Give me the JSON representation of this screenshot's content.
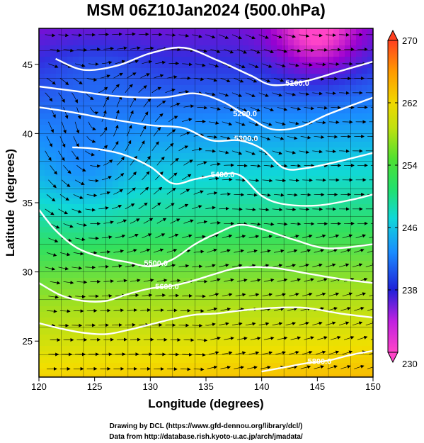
{
  "chart_data": {
    "type": "heatmap",
    "title": "MSM 06Z10Jan2024 (500.0hPa)",
    "xlabel": "Longitude (degrees)",
    "ylabel": "Latitude  (degrees)",
    "xlim": [
      120,
      150
    ],
    "ylim": [
      22.4,
      47.6
    ],
    "x_ticks": [
      120,
      125,
      130,
      135,
      140,
      145,
      150
    ],
    "y_ticks": [
      25,
      30,
      35,
      40,
      45
    ],
    "x_tick_labels": [
      "120",
      "125",
      "130",
      "135",
      "140",
      "145",
      "150"
    ],
    "y_tick_labels": [
      "25",
      "30",
      "35",
      "40",
      "45"
    ],
    "grid": true,
    "colorbar": {
      "min": 230,
      "max": 270,
      "ticks": [
        230,
        238,
        246,
        254,
        262,
        270
      ],
      "tick_labels": [
        "230",
        "238",
        "246",
        "254",
        "262",
        "270"
      ],
      "colors": [
        "#ff44c8",
        "#9a00d0",
        "#3030e0",
        "#1a8cff",
        "#10d8d8",
        "#30e060",
        "#a0e020",
        "#f0e000",
        "#ff9a00",
        "#ff4020"
      ]
    },
    "contours": [
      {
        "value": 5100.0,
        "label": "5100.0",
        "points": [
          [
            121.5,
            45.4
          ],
          [
            124,
            44.6
          ],
          [
            127,
            44.9
          ],
          [
            130,
            45.8
          ],
          [
            133,
            46.2
          ],
          [
            136,
            45.3
          ],
          [
            139,
            44.2
          ],
          [
            141,
            43.5
          ],
          [
            144,
            43.8
          ],
          [
            147,
            44.5
          ],
          [
            150,
            45.2
          ]
        ],
        "label_at": [
          143.2,
          43.6
        ]
      },
      {
        "value": 5200.0,
        "label": "5200.0",
        "points": [
          [
            120,
            43.4
          ],
          [
            123,
            43.1
          ],
          [
            127,
            42.7
          ],
          [
            131,
            42.6
          ],
          [
            134,
            42.9
          ],
          [
            136.5,
            42.3
          ],
          [
            139,
            41.1
          ],
          [
            141,
            40.3
          ],
          [
            143.5,
            40.5
          ],
          [
            146,
            41.4
          ],
          [
            150,
            42.6
          ]
        ],
        "label_at": [
          138.5,
          41.4
        ]
      },
      {
        "value": 5300.0,
        "label": "5300.0",
        "points": [
          [
            120,
            41.9
          ],
          [
            122.5,
            41.6
          ],
          [
            126,
            41.1
          ],
          [
            130,
            40.6
          ],
          [
            133,
            40.4
          ],
          [
            135.5,
            39.5
          ],
          [
            138,
            39.5
          ],
          [
            140,
            38.9
          ],
          [
            142,
            37.5
          ],
          [
            144,
            37.5
          ],
          [
            147,
            38.0
          ],
          [
            150,
            38.6
          ]
        ],
        "label_at": [
          138.6,
          39.6
        ]
      },
      {
        "value": 5400.0,
        "label": "5400.0",
        "points": [
          [
            123,
            39.0
          ],
          [
            125,
            38.9
          ],
          [
            127.5,
            38.5
          ],
          [
            130,
            37.6
          ],
          [
            132,
            36.4
          ],
          [
            134,
            36.7
          ],
          [
            136,
            37.0
          ],
          [
            138,
            37.0
          ],
          [
            140,
            35.5
          ],
          [
            142,
            34.9
          ],
          [
            145,
            34.8
          ],
          [
            148,
            35.2
          ],
          [
            150,
            35.6
          ]
        ],
        "label_at": [
          136.5,
          37.0
        ]
      },
      {
        "value": 5500.0,
        "label": "5500.0",
        "points": [
          [
            120,
            34.5
          ],
          [
            121.5,
            33.0
          ],
          [
            123.5,
            31.7
          ],
          [
            126,
            31.0
          ],
          [
            128,
            30.7
          ],
          [
            130,
            30.4
          ],
          [
            132,
            30.9
          ],
          [
            134,
            32.0
          ],
          [
            136,
            32.8
          ],
          [
            138,
            33.4
          ],
          [
            140,
            33.1
          ],
          [
            143,
            32.3
          ],
          [
            146,
            31.7
          ],
          [
            150,
            32.0
          ]
        ],
        "label_at": [
          130.5,
          30.6
        ]
      },
      {
        "value": 5600.0,
        "label": "5600.0",
        "points": [
          [
            120,
            29.2
          ],
          [
            122,
            28.3
          ],
          [
            124,
            27.9
          ],
          [
            126,
            27.9
          ],
          [
            128,
            28.4
          ],
          [
            130,
            28.8
          ],
          [
            132,
            29.0
          ],
          [
            134,
            29.4
          ],
          [
            136,
            29.9
          ],
          [
            138,
            30.3
          ],
          [
            141,
            30.3
          ],
          [
            144,
            29.9
          ],
          [
            147,
            29.5
          ],
          [
            150,
            29.2
          ]
        ],
        "label_at": [
          131.5,
          28.9
        ]
      },
      {
        "value": 5700.0,
        "label": "",
        "points": [
          [
            120,
            26.3
          ],
          [
            122,
            25.9
          ],
          [
            124,
            25.6
          ],
          [
            126,
            25.5
          ],
          [
            128,
            25.8
          ],
          [
            130,
            26.2
          ],
          [
            132,
            26.6
          ],
          [
            134,
            26.9
          ],
          [
            136,
            27.0
          ],
          [
            138,
            27.2
          ],
          [
            141,
            27.4
          ],
          [
            144,
            27.4
          ],
          [
            147,
            27.0
          ],
          [
            150,
            26.7
          ]
        ],
        "label_at": null
      },
      {
        "value": 5800.0,
        "label": "5800.0",
        "points": [
          [
            140,
            22.8
          ],
          [
            142,
            23.1
          ],
          [
            144,
            23.4
          ],
          [
            146,
            23.6
          ],
          [
            148,
            24.0
          ],
          [
            150,
            24.3
          ]
        ],
        "label_at": [
          145.2,
          23.5
        ]
      }
    ]
  },
  "credits": {
    "line1": "Drawing by DCL (https://www.gfd-dennou.org/library/dcl/)",
    "line2": "Data from http://database.rish.kyoto-u.ac.jp/arch/jmadata/"
  }
}
